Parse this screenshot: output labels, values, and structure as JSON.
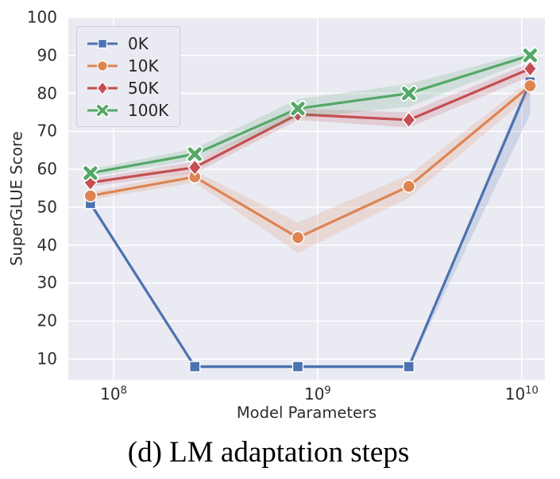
{
  "figure": {
    "caption": "(d) LM adaptation steps"
  },
  "chart_data": {
    "type": "line",
    "title": "",
    "xlabel": "Model Parameters",
    "ylabel": "SuperGLUE Score",
    "x_scale": "log",
    "grid": true,
    "legend_position": "upper-left",
    "xlim": [
      60000000.0,
      13000000000.0
    ],
    "ylim": [
      4.56,
      100
    ],
    "y_ticks": [
      10,
      20,
      30,
      40,
      50,
      60,
      70,
      80,
      90,
      100
    ],
    "x_ticks": [
      {
        "value": 100000000.0,
        "base": "10",
        "exp": "8"
      },
      {
        "value": 1000000000.0,
        "base": "10",
        "exp": "9"
      },
      {
        "value": 10000000000.0,
        "base": "10",
        "exp": "10"
      }
    ],
    "x": [
      77000000.0,
      250000000.0,
      800000000.0,
      2800000000.0,
      11000000000.0
    ],
    "series": [
      {
        "name": "0K",
        "color": "#4C72B0",
        "marker": "square",
        "values": [
          51,
          8,
          8,
          8,
          83
        ],
        "band_upper": [
          51.8,
          8.5,
          8.5,
          8.5,
          84.5
        ],
        "band_lower": [
          50.2,
          7.5,
          7.5,
          7.5,
          74.5
        ]
      },
      {
        "name": "10K",
        "color": "#DD8452",
        "marker": "circle",
        "values": [
          53,
          58,
          42,
          55.5,
          82
        ],
        "band_upper": [
          54,
          59.5,
          46,
          58.5,
          83.5
        ],
        "band_lower": [
          52,
          56.5,
          38,
          52.5,
          79.5
        ]
      },
      {
        "name": "50K",
        "color": "#C44E52",
        "marker": "diamond",
        "values": [
          56.5,
          60.5,
          74.5,
          73,
          86.5
        ],
        "band_upper": [
          57.5,
          62,
          76,
          75,
          88
        ],
        "band_lower": [
          55.5,
          59,
          73,
          71,
          84.5
        ]
      },
      {
        "name": "100K",
        "color": "#55A868",
        "marker": "x",
        "values": [
          59,
          64,
          76,
          80,
          90
        ],
        "band_upper": [
          60,
          65.5,
          78.5,
          82.5,
          91
        ],
        "band_lower": [
          58,
          62.5,
          73.5,
          76.5,
          88.8
        ]
      }
    ]
  },
  "colors": {
    "figure_bg": "#ffffff",
    "plot_bg": "#EAEAF2",
    "grid": "#ffffff",
    "tick_text": "#2d2d2d",
    "caption_text": "#000000",
    "legend_bg": "#EAEAF2",
    "legend_border": "#ccccd9"
  }
}
